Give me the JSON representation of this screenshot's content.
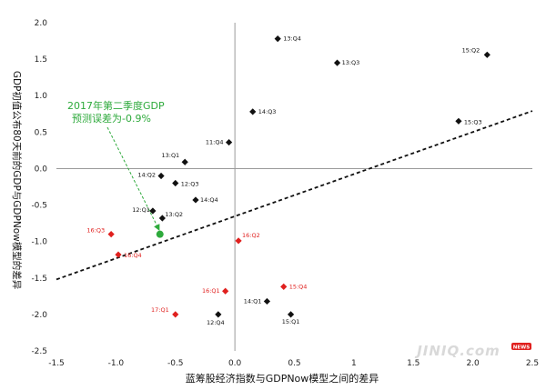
{
  "chart_data": {
    "type": "scatter",
    "title": "",
    "xlabel": "蓝筹股经济指数与GDPNow模型之间的差异",
    "ylabel": "GDP初值公布80天前的GDP与GDPNow模型的差异",
    "xlim": [
      -1.5,
      2.5
    ],
    "ylim": [
      -2.5,
      2.0
    ],
    "x_ticks": [
      -1.5,
      -1.0,
      -0.5,
      0.0,
      0.5,
      1.0,
      1.5,
      2.0,
      2.5
    ],
    "y_ticks": [
      2.0,
      1.5,
      1.0,
      0.5,
      0.0,
      -0.5,
      -1.0,
      -1.5,
      -2.0,
      -2.5
    ],
    "x_tick_labels": [
      "-1.5",
      "-1.0",
      "-0.5",
      "0.0",
      "0.5",
      "1",
      "1.5",
      "2.0",
      "2.5"
    ],
    "y_tick_labels": [
      "2.0",
      "1.5",
      "1.0",
      "0.5",
      "0.0",
      "-0.5",
      "-1.0",
      "-1.5",
      "-2.0",
      "-2.5"
    ],
    "colors": {
      "black": "#111111",
      "red": "#e0201e",
      "green": "#2eaa3c",
      "trend": "#111111"
    },
    "points": [
      {
        "label": "13:Q4",
        "x": 0.36,
        "y": 1.78,
        "color": "black"
      },
      {
        "label": "15:Q2",
        "x": 2.12,
        "y": 1.56,
        "color": "black"
      },
      {
        "label": "13:Q3",
        "x": 0.86,
        "y": 1.45,
        "color": "black"
      },
      {
        "label": "14:Q3",
        "x": 0.15,
        "y": 0.78,
        "color": "black"
      },
      {
        "label": "15:Q3",
        "x": 1.88,
        "y": 0.65,
        "color": "black"
      },
      {
        "label": "11:Q4",
        "x": -0.05,
        "y": 0.36,
        "color": "black"
      },
      {
        "label": "13:Q1",
        "x": -0.42,
        "y": 0.09,
        "color": "black"
      },
      {
        "label": "14:Q2",
        "x": -0.62,
        "y": -0.1,
        "color": "black"
      },
      {
        "label": "12:Q3",
        "x": -0.5,
        "y": -0.2,
        "color": "black"
      },
      {
        "label": "14:Q4",
        "x": -0.33,
        "y": -0.43,
        "color": "black"
      },
      {
        "label": "12:Q1",
        "x": -0.69,
        "y": -0.58,
        "color": "black"
      },
      {
        "label": "13:Q2",
        "x": -0.61,
        "y": -0.68,
        "color": "black"
      },
      {
        "label": "16:Q3",
        "x": -1.04,
        "y": -0.9,
        "color": "red"
      },
      {
        "label": "16:Q2",
        "x": 0.03,
        "y": -0.99,
        "color": "red"
      },
      {
        "label": "16:Q4",
        "x": -0.98,
        "y": -1.18,
        "color": "red"
      },
      {
        "label": "16:Q1",
        "x": -0.08,
        "y": -1.68,
        "color": "red"
      },
      {
        "label": "15:Q4",
        "x": 0.41,
        "y": -1.62,
        "color": "red"
      },
      {
        "label": "14:Q1",
        "x": 0.27,
        "y": -1.82,
        "color": "black"
      },
      {
        "label": "17:Q1",
        "x": -0.5,
        "y": -2.0,
        "color": "red"
      },
      {
        "label": "12:Q4",
        "x": -0.14,
        "y": -2.0,
        "color": "black"
      },
      {
        "label": "15:Q1",
        "x": 0.47,
        "y": -2.0,
        "color": "black"
      },
      {
        "label": "",
        "x": -0.63,
        "y": -0.9,
        "color": "green"
      }
    ],
    "trendline": {
      "x": [
        -1.5,
        2.5
      ],
      "y": [
        -1.52,
        0.79
      ],
      "style": "dashed"
    },
    "annotation": {
      "lines": [
        "2017年第二季度GDP",
        "预测误差为-0.9%"
      ],
      "arrow_to": {
        "x": -0.63,
        "y": -0.9
      }
    },
    "grid": false
  },
  "watermark": {
    "text": "JINIQ.com",
    "badge": "NEWS"
  }
}
